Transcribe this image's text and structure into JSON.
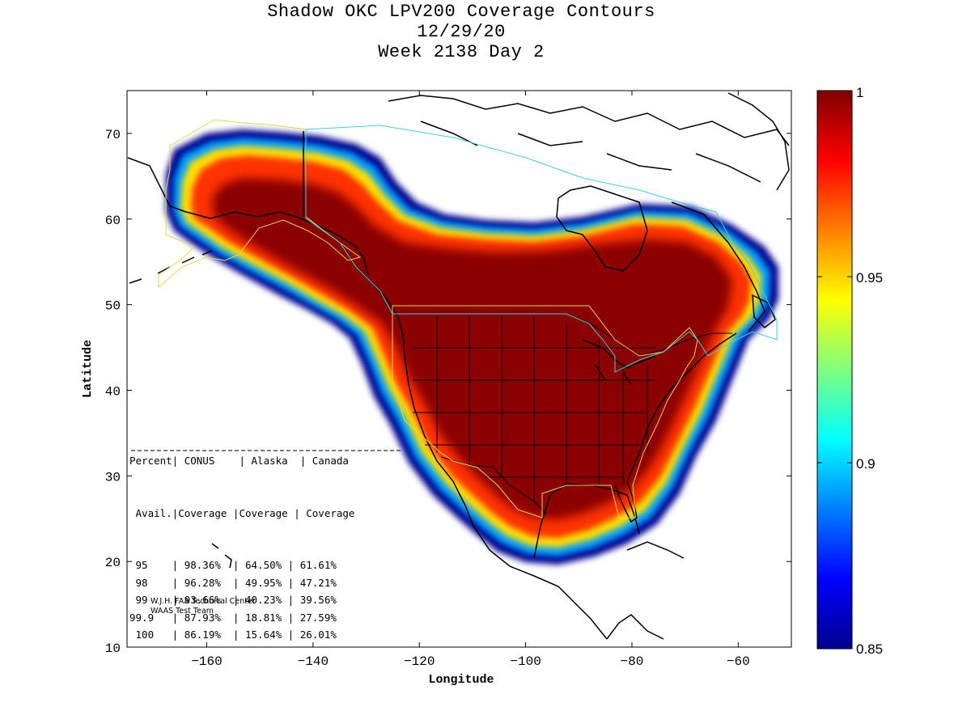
{
  "title": {
    "line1": "Shadow OKC LPV200 Coverage Contours",
    "line2": "12/29/20",
    "line3": "Week 2138 Day 2"
  },
  "axes": {
    "xlabel": "Longitude",
    "ylabel": "Latitude",
    "xlim": [
      -175,
      -50
    ],
    "ylim": [
      10,
      75
    ],
    "xticks": [
      -160,
      -140,
      -120,
      -100,
      -80,
      -60
    ],
    "yticks": [
      10,
      20,
      30,
      40,
      50,
      60,
      70
    ]
  },
  "colorbar": {
    "min": 0.85,
    "max": 1,
    "ticks": [
      "1",
      "0.95",
      "0.9",
      "0.85"
    ],
    "tick_values": [
      1,
      0.95,
      0.9,
      0.85
    ],
    "colormap": "jet"
  },
  "stats_table": {
    "header1": [
      "Percent",
      "CONUS",
      "Alaska",
      "Canada"
    ],
    "header2": [
      "Avail.",
      "Coverage",
      "Coverage",
      "Coverage"
    ],
    "rows": [
      [
        "95",
        "98.36%",
        "64.50%",
        "61.61%"
      ],
      [
        "98",
        "96.28%",
        "49.95%",
        "47.21%"
      ],
      [
        "99",
        "93.66%",
        "40.23%",
        "39.56%"
      ],
      [
        "99.9",
        "87.93%",
        "18.81%",
        "27.59%"
      ],
      [
        "100",
        "86.19%",
        "15.64%",
        "26.01%"
      ]
    ]
  },
  "credit": {
    "line1": "W.J.H. FAA Technical Center",
    "line2": "WAAS Test Team"
  },
  "colors": {
    "conus_boundary": "#e6d84a",
    "canada_boundary": "#3fd0e0",
    "coastline": "#000000"
  }
}
